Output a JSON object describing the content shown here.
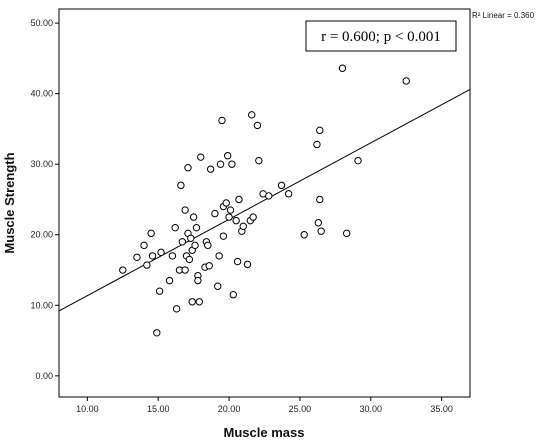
{
  "chart_data": {
    "type": "scatter",
    "xlabel": "Muscle mass",
    "ylabel": "Muscle Strength",
    "xlim": [
      8.0,
      37.0
    ],
    "ylim": [
      -3.0,
      52.0
    ],
    "x_ticks": [
      "10.00",
      "15.00",
      "20.00",
      "25.00",
      "30.00",
      "35.00"
    ],
    "y_ticks": [
      "0.00",
      "10.00",
      "20.00",
      "30.00",
      "40.00",
      "50.00"
    ],
    "grid": false,
    "annotation": "r = 0.600; p < 0.001",
    "fit_label": "R² Linear = 0.360",
    "fit_line": {
      "x": [
        8.0,
        37.0
      ],
      "y": [
        9.2,
        40.6
      ]
    },
    "points": [
      [
        12.5,
        15.0
      ],
      [
        13.5,
        16.8
      ],
      [
        14.0,
        18.5
      ],
      [
        14.2,
        15.7
      ],
      [
        14.5,
        20.2
      ],
      [
        14.6,
        17.0
      ],
      [
        14.9,
        6.1
      ],
      [
        15.1,
        12.0
      ],
      [
        15.2,
        17.5
      ],
      [
        15.8,
        13.5
      ],
      [
        16.0,
        17.0
      ],
      [
        16.2,
        21.0
      ],
      [
        16.3,
        9.5
      ],
      [
        16.5,
        15.0
      ],
      [
        16.6,
        27.0
      ],
      [
        16.7,
        19.0
      ],
      [
        16.9,
        23.5
      ],
      [
        16.9,
        15.0
      ],
      [
        17.0,
        17.0
      ],
      [
        17.1,
        29.5
      ],
      [
        17.1,
        20.2
      ],
      [
        17.2,
        16.5
      ],
      [
        17.3,
        19.5
      ],
      [
        17.4,
        17.8
      ],
      [
        17.4,
        10.5
      ],
      [
        17.5,
        22.5
      ],
      [
        17.6,
        18.5
      ],
      [
        17.7,
        21.0
      ],
      [
        17.8,
        14.2
      ],
      [
        17.8,
        13.5
      ],
      [
        17.9,
        10.5
      ],
      [
        18.0,
        31.0
      ],
      [
        18.3,
        15.4
      ],
      [
        18.4,
        19.0
      ],
      [
        18.5,
        18.5
      ],
      [
        18.6,
        15.6
      ],
      [
        18.7,
        29.3
      ],
      [
        19.0,
        23.0
      ],
      [
        19.2,
        12.7
      ],
      [
        19.3,
        17.0
      ],
      [
        19.4,
        30.0
      ],
      [
        19.5,
        36.2
      ],
      [
        19.6,
        24.0
      ],
      [
        19.6,
        19.8
      ],
      [
        19.8,
        24.5
      ],
      [
        19.9,
        31.2
      ],
      [
        20.0,
        22.5
      ],
      [
        20.1,
        23.5
      ],
      [
        20.2,
        30.0
      ],
      [
        20.3,
        11.5
      ],
      [
        20.5,
        22.0
      ],
      [
        20.6,
        16.2
      ],
      [
        20.7,
        25.0
      ],
      [
        20.9,
        20.5
      ],
      [
        21.0,
        21.2
      ],
      [
        21.3,
        15.8
      ],
      [
        21.5,
        22.0
      ],
      [
        21.6,
        37.0
      ],
      [
        21.7,
        22.5
      ],
      [
        22.0,
        35.5
      ],
      [
        22.1,
        30.5
      ],
      [
        22.4,
        25.8
      ],
      [
        22.8,
        25.5
      ],
      [
        23.7,
        27.0
      ],
      [
        24.2,
        25.8
      ],
      [
        25.3,
        20.0
      ],
      [
        26.2,
        32.8
      ],
      [
        26.3,
        21.7
      ],
      [
        26.4,
        25.0
      ],
      [
        26.4,
        34.8
      ],
      [
        26.5,
        20.5
      ],
      [
        28.0,
        43.6
      ],
      [
        28.3,
        20.2
      ],
      [
        29.1,
        30.5
      ],
      [
        32.5,
        41.8
      ]
    ]
  }
}
